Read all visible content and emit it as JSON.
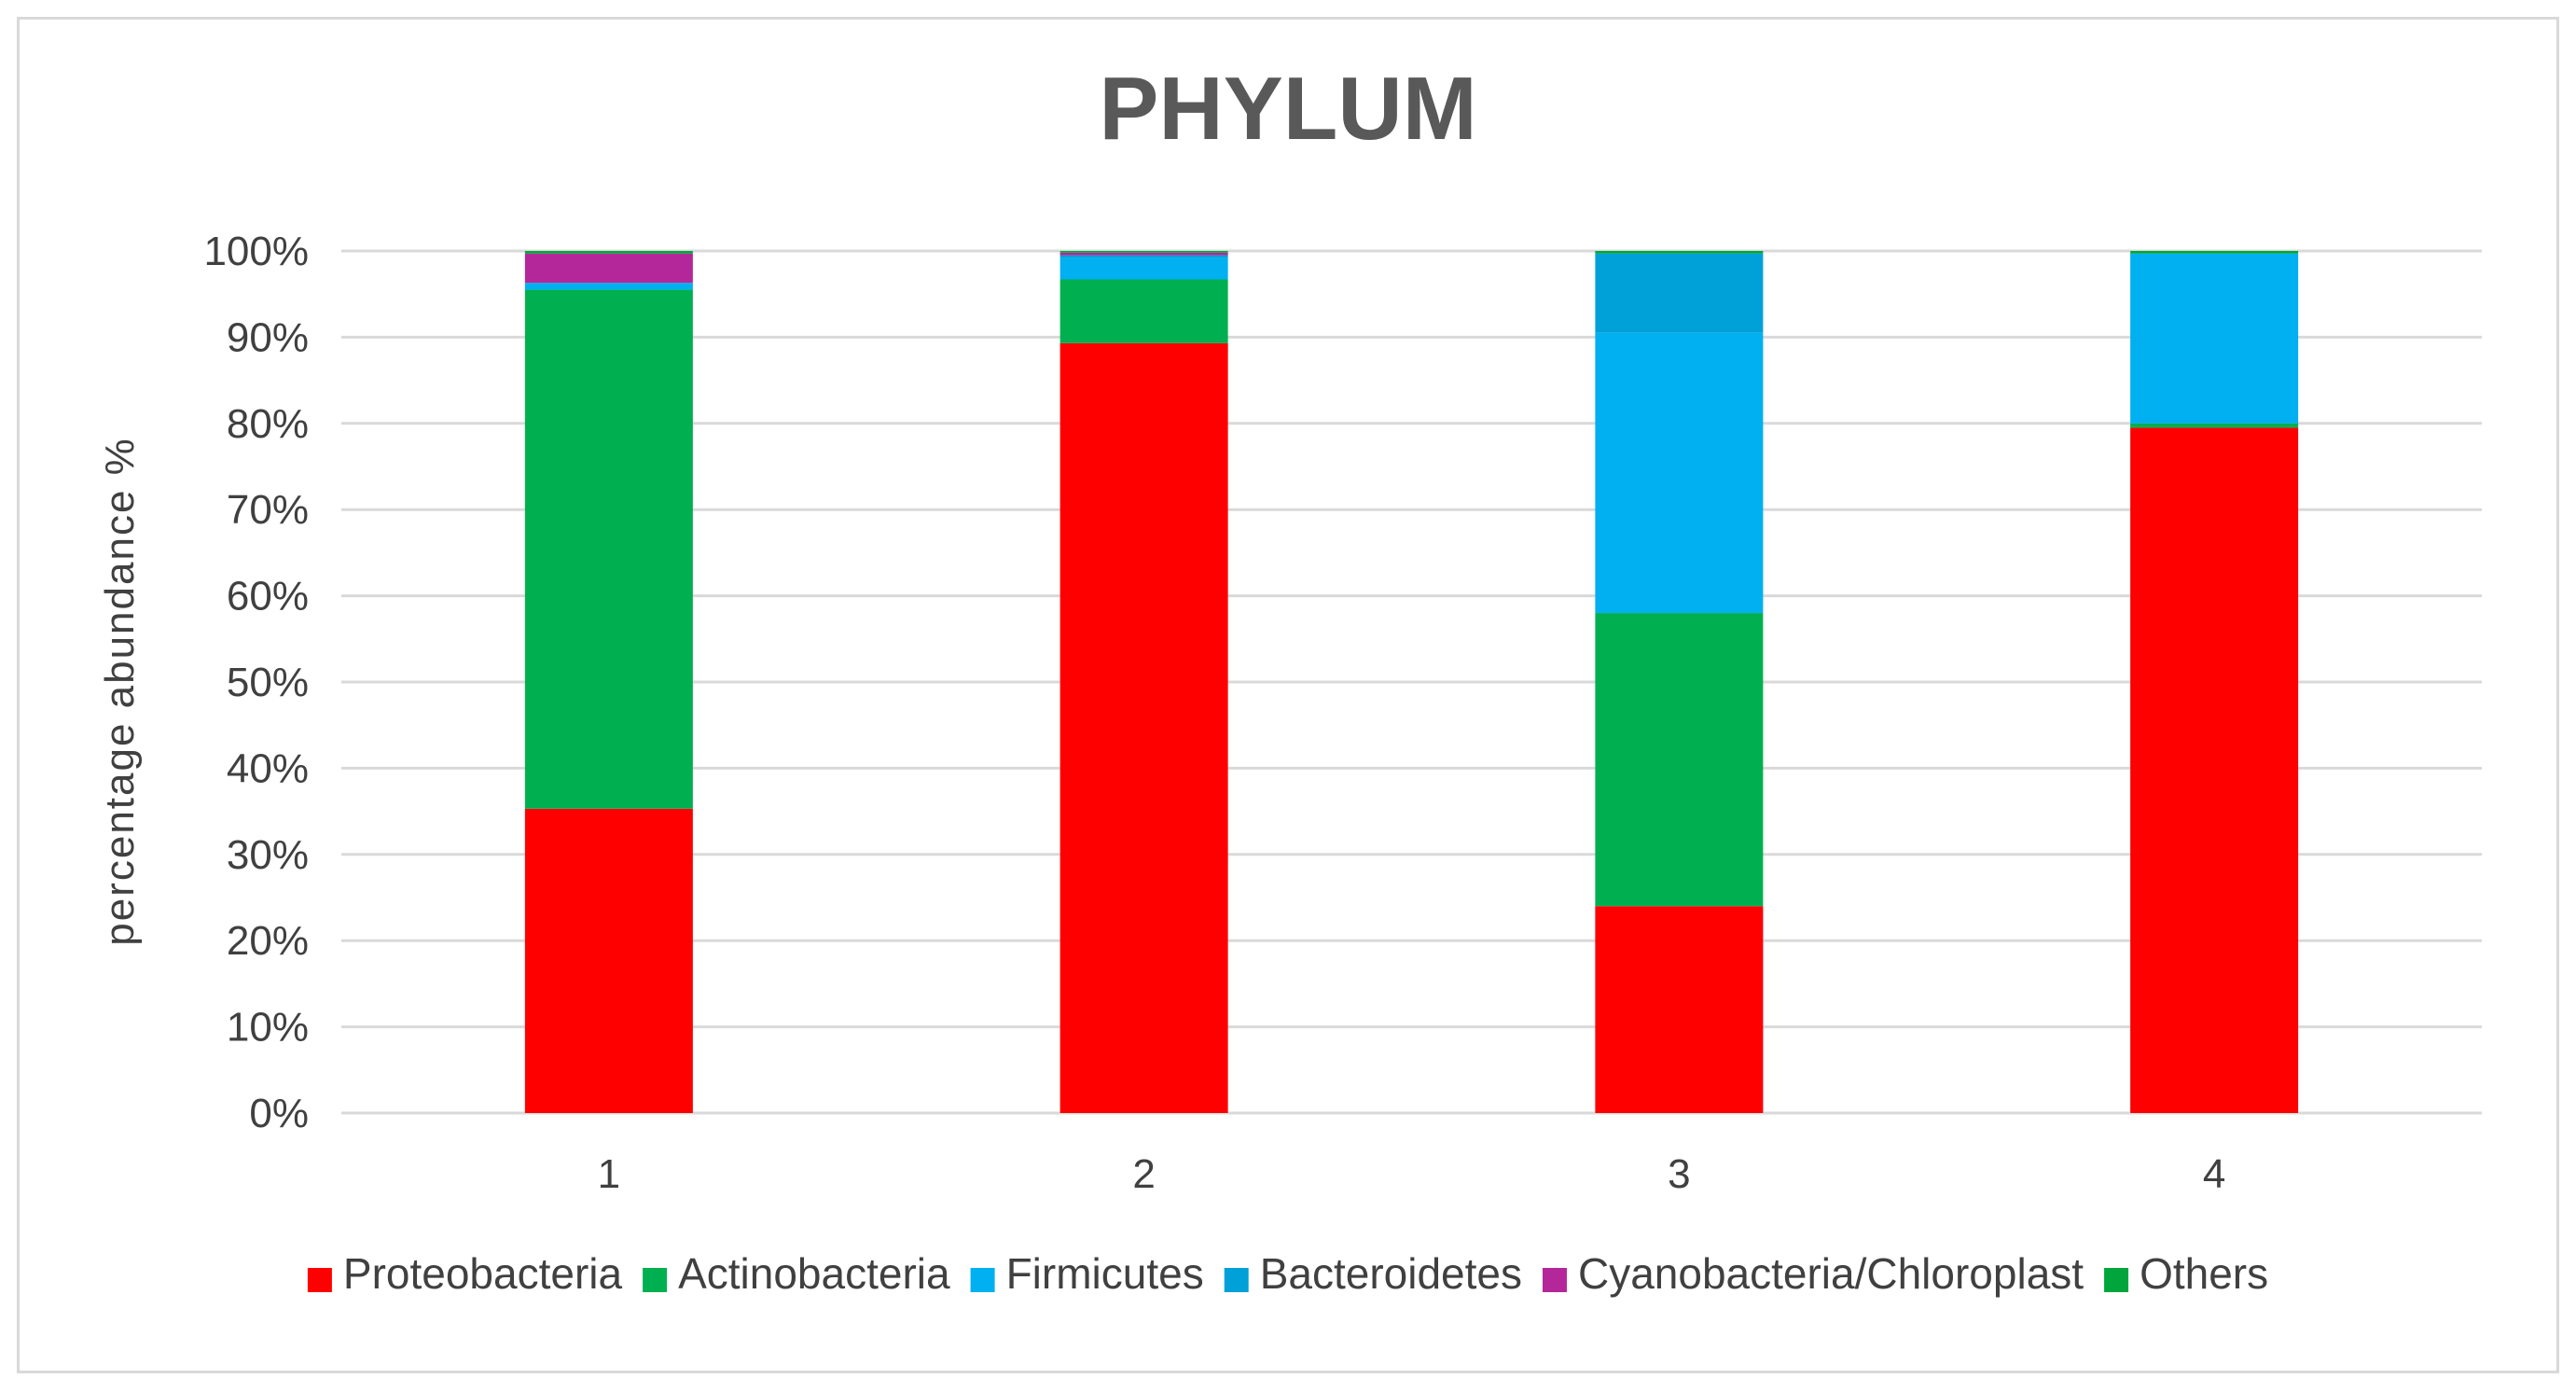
{
  "chart_data": {
    "type": "bar",
    "stacked": true,
    "title": "PHYLUM",
    "xlabel": "",
    "ylabel": "percentage abundance %",
    "ylim": [
      0,
      100
    ],
    "yticks": [
      "0%",
      "10%",
      "20%",
      "30%",
      "40%",
      "50%",
      "60%",
      "70%",
      "80%",
      "90%",
      "100%"
    ],
    "categories": [
      "1",
      "2",
      "3",
      "4"
    ],
    "grid": true,
    "legend_position": "bottom",
    "series": [
      {
        "name": "Proteobacteria",
        "color": "#ff0000",
        "values": [
          35.3,
          89.3,
          24.0,
          79.5
        ]
      },
      {
        "name": "Actinobacteria",
        "color": "#00b050",
        "values": [
          60.2,
          7.4,
          34.0,
          0.5
        ]
      },
      {
        "name": "Firmicutes",
        "color": "#00b0f0",
        "values": [
          0.8,
          2.5,
          32.5,
          19.7
        ]
      },
      {
        "name": "Bacteroidetes",
        "color": "#00a0d8",
        "values": [
          0.0,
          0.3,
          9.2,
          0.0
        ]
      },
      {
        "name": "Cyanobacteria/Chloroplast",
        "color": "#b4279a",
        "values": [
          3.4,
          0.3,
          0.0,
          0.0
        ]
      },
      {
        "name": "Others",
        "color": "#00a63c",
        "values": [
          0.3,
          0.2,
          0.3,
          0.3
        ]
      }
    ]
  }
}
